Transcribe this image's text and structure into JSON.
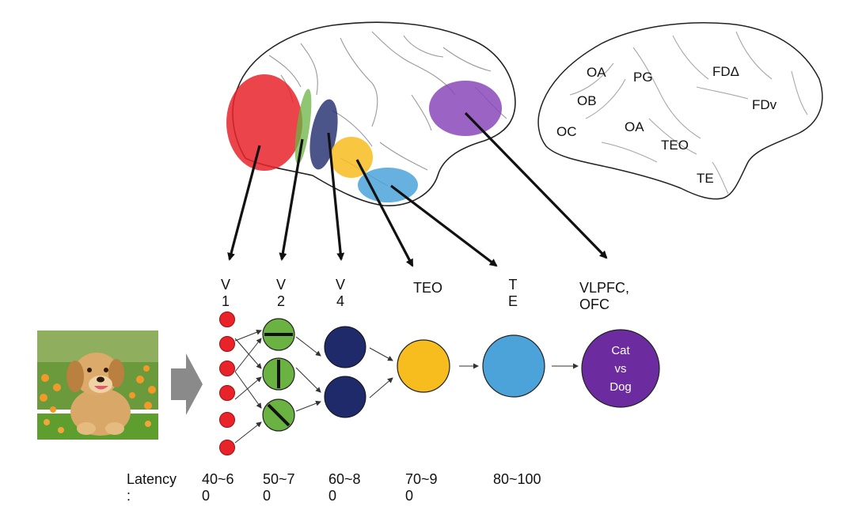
{
  "stages": [
    {
      "id": "v1",
      "label": "V\n1"
    },
    {
      "id": "v2",
      "label": "V\n2"
    },
    {
      "id": "v4",
      "label": "V\n4"
    },
    {
      "id": "teo",
      "label": "TEO"
    },
    {
      "id": "te",
      "label": "T\nE"
    },
    {
      "id": "vlpfc",
      "label": "VLPFC,\nOFC"
    }
  ],
  "output_node": {
    "text": "Cat\nvs\nDog"
  },
  "latency": {
    "label": "Latency\n:",
    "values": [
      "40~6\n0",
      "50~7\n0",
      "60~8\n0",
      "70~9\n0",
      "80~100"
    ]
  },
  "brain_atlas_labels": [
    "OA",
    "PG",
    "FDΔ",
    "OB",
    "FDv",
    "OC",
    "OA",
    "TEO",
    "TE"
  ],
  "colors": {
    "v1": "#e8232a",
    "v2": "#6ab343",
    "v4": "#1f2a6b",
    "teo": "#f7bc1e",
    "te": "#4ba3d9",
    "pfc": "#6c2b9e",
    "arrow_gray": "#8a8a8a"
  },
  "input_image": {
    "icon": "puppy-photo"
  }
}
